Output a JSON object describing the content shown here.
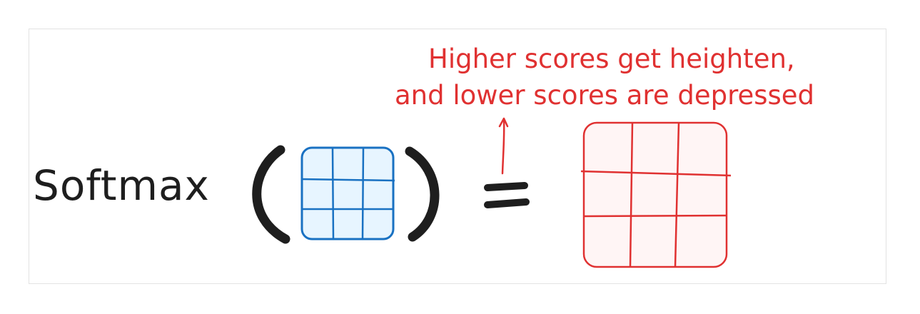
{
  "function_label": "Softmax",
  "annotation": {
    "line1": "Higher scores get heighten,",
    "line2": "and lower scores are depressed"
  },
  "input_matrix": {
    "rows": 3,
    "cols": 3,
    "stroke": "#1971c2",
    "fill": "#e7f5ff"
  },
  "output_matrix": {
    "rows": 3,
    "cols": 3,
    "stroke": "#e03131",
    "fill": "#fff5f5"
  },
  "colors": {
    "ink": "#1e1e1e",
    "accent": "#e03131"
  }
}
